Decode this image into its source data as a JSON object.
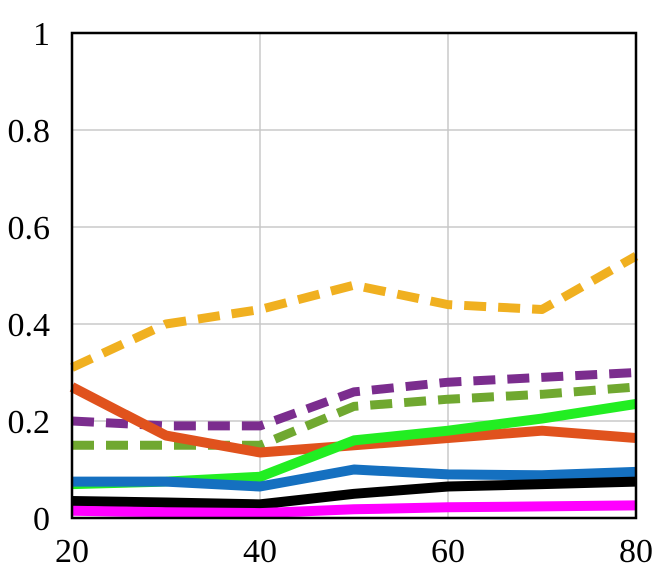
{
  "chart_data": {
    "type": "line",
    "title": "",
    "xlabel": "",
    "ylabel": "",
    "xlim": [
      20,
      80
    ],
    "ylim": [
      0,
      1
    ],
    "grid": true,
    "legend": "none",
    "x_ticks": [
      "20",
      "40",
      "60",
      "80"
    ],
    "y_ticks": [
      "0",
      "0.2",
      "0.4",
      "0.6",
      "0.8",
      "1"
    ],
    "x_tick_values": [
      20,
      40,
      60,
      80
    ],
    "y_tick_values": [
      0,
      0.2,
      0.4,
      0.6,
      0.8,
      1
    ],
    "series": [
      {
        "color": "#f0b020",
        "dash": true,
        "x": [
          20,
          30,
          40,
          50,
          60,
          70,
          80
        ],
        "y": [
          0.31,
          0.4,
          0.43,
          0.48,
          0.44,
          0.43,
          0.54
        ]
      },
      {
        "color": "#7b2d8e",
        "dash": true,
        "x": [
          20,
          30,
          40,
          50,
          60,
          70,
          80
        ],
        "y": [
          0.2,
          0.19,
          0.19,
          0.26,
          0.28,
          0.29,
          0.3
        ]
      },
      {
        "color": "#70a830",
        "dash": true,
        "x": [
          20,
          30,
          40,
          50,
          60,
          70,
          80
        ],
        "y": [
          0.15,
          0.15,
          0.15,
          0.23,
          0.245,
          0.255,
          0.27
        ]
      },
      {
        "color": "#e0521d",
        "dash": false,
        "x": [
          20,
          30,
          40,
          50,
          60,
          70,
          80
        ],
        "y": [
          0.27,
          0.17,
          0.135,
          0.15,
          0.165,
          0.18,
          0.165
        ]
      },
      {
        "color": "#22ee22",
        "dash": false,
        "x": [
          20,
          30,
          40,
          50,
          60,
          70,
          80
        ],
        "y": [
          0.07,
          0.075,
          0.085,
          0.16,
          0.18,
          0.205,
          0.235
        ]
      },
      {
        "color": "#1570c0",
        "dash": false,
        "x": [
          20,
          30,
          40,
          50,
          60,
          70,
          80
        ],
        "y": [
          0.075,
          0.075,
          0.065,
          0.1,
          0.09,
          0.088,
          0.095
        ]
      },
      {
        "color": "#000000",
        "dash": false,
        "x": [
          20,
          30,
          40,
          50,
          60,
          70,
          80
        ],
        "y": [
          0.035,
          0.032,
          0.028,
          0.05,
          0.065,
          0.07,
          0.075
        ]
      },
      {
        "color": "#ff00ff",
        "dash": false,
        "x": [
          20,
          30,
          40,
          50,
          60,
          70,
          80
        ],
        "y": [
          0.015,
          0.012,
          0.01,
          0.018,
          0.022,
          0.024,
          0.026
        ]
      }
    ]
  }
}
